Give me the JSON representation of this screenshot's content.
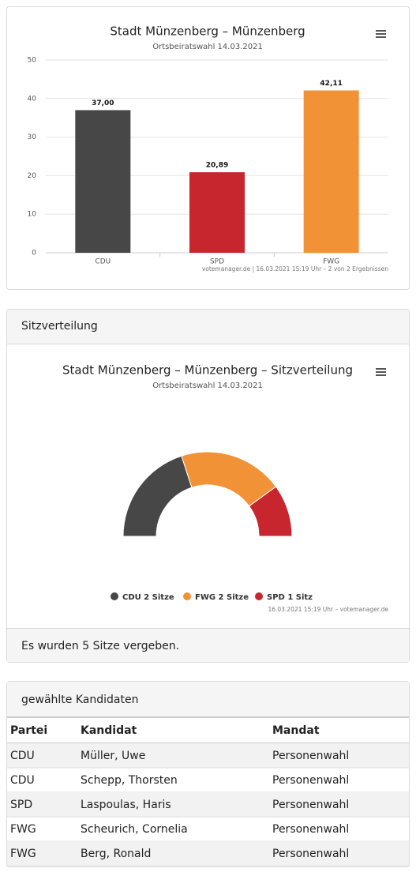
{
  "chart_data": [
    {
      "type": "bar",
      "title": "Stadt Münzenberg – Münzenberg",
      "subtitle": "Ortsbeiratswahl 14.03.2021",
      "categories": [
        "CDU",
        "SPD",
        "FWG"
      ],
      "values": [
        37,
        20.89,
        42.11
      ],
      "value_labels": [
        "37,00",
        "20,89",
        "42,11"
      ],
      "colors": [
        "#474747",
        "#c8262f",
        "#f19236"
      ],
      "ylim": [
        0,
        50
      ],
      "yticks": [
        0,
        10,
        20,
        30,
        40,
        50
      ],
      "grid": true,
      "credit": "votemanager.de | 16.03.2021 15:19 Uhr – 2 von 2 Ergebnissen"
    },
    {
      "type": "pie",
      "title": "Stadt Münzenberg – Münzenberg – Sitzverteilung",
      "subtitle": "Ortsbeiratswahl 14.03.2021",
      "categories": [
        "CDU 2 Sitze",
        "FWG 2 Sitze",
        "SPD 1 Sitz"
      ],
      "values": [
        2,
        2,
        1
      ],
      "colors": [
        "#474747",
        "#f19236",
        "#c8262f"
      ],
      "credit": "16.03.2021 15:19 Uhr – votemanager.de"
    }
  ],
  "seats_panel": {
    "title": "Sitzverteilung",
    "footer": "Es wurden 5 Sitze vergeben."
  },
  "candidates_panel": {
    "title": "gewählte Kandidaten"
  },
  "table": {
    "header": [
      "Partei",
      "Kandidat",
      "Mandat"
    ],
    "rows": [
      [
        "CDU",
        "Müller, Uwe",
        "Personenwahl"
      ],
      [
        "CDU",
        "Schepp, Thorsten",
        "Personenwahl"
      ],
      [
        "SPD",
        "Laspoulas, Haris",
        "Personenwahl"
      ],
      [
        "FWG",
        "Scheurich, Cornelia",
        "Personenwahl"
      ],
      [
        "FWG",
        "Berg, Ronald",
        "Personenwahl"
      ]
    ]
  }
}
